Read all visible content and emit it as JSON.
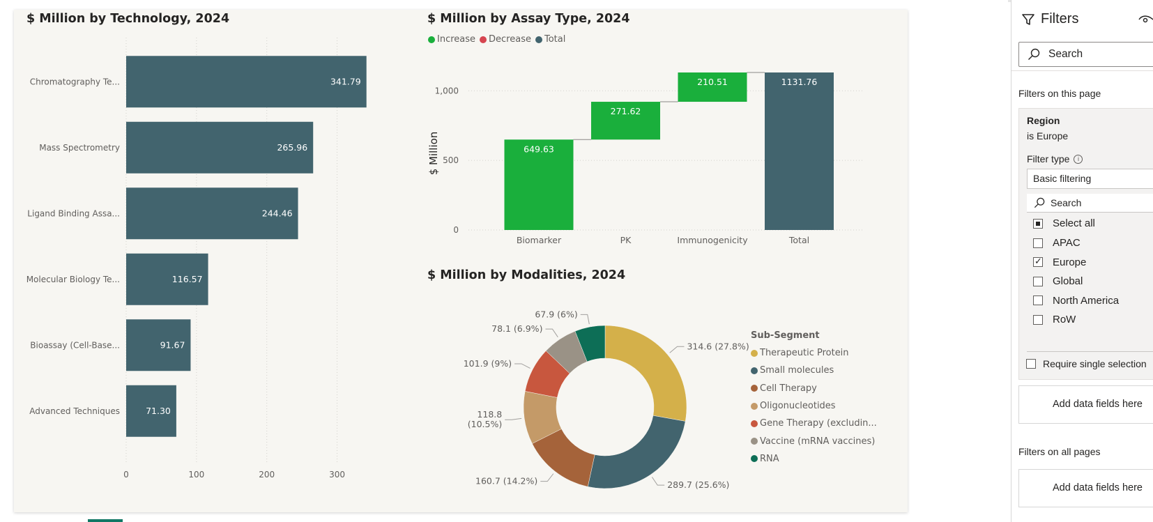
{
  "bar_chart": {
    "title": "$ Million by Technology, 2024",
    "chart_data": {
      "type": "bar",
      "orientation": "horizontal",
      "title": "$ Million by Technology, 2024",
      "categories": [
        "Chromatography Te...",
        "Mass Spectrometry",
        "Ligand Binding Assa...",
        "Molecular Biology Te...",
        "Bioassay (Cell-Base...",
        "Advanced Techniques"
      ],
      "values": [
        341.79,
        265.96,
        244.46,
        116.57,
        91.67,
        71.3
      ],
      "value_labels": [
        "341.79",
        "265.96",
        "244.46",
        "116.57",
        "91.67",
        "71.30"
      ],
      "xlim": [
        0,
        350
      ],
      "x_ticks": [
        0,
        100,
        200,
        300
      ],
      "grid": true,
      "color": "#42646e"
    }
  },
  "waterfall_chart": {
    "title": "$ Million by Assay Type, 2024",
    "legend": [
      {
        "label": "Increase",
        "color": "#1aaf3c"
      },
      {
        "label": "Decrease",
        "color": "#d64550"
      },
      {
        "label": "Total",
        "color": "#42646e"
      }
    ],
    "chart_data": {
      "type": "waterfall",
      "title": "$ Million by Assay Type, 2024",
      "ylabel": "$ Million",
      "categories": [
        "Biomarker",
        "PK",
        "Immunogenicity",
        "Total"
      ],
      "values": [
        649.63,
        271.62,
        210.51,
        1131.76
      ],
      "value_labels": [
        "649.63",
        "271.62",
        "210.51",
        "1131.76"
      ],
      "kinds": [
        "increase",
        "increase",
        "increase",
        "total"
      ],
      "ylim": [
        0,
        1131.76
      ],
      "y_ticks": [
        0,
        500,
        1000
      ],
      "y_tick_labels": [
        "0",
        "500",
        "1,000"
      ],
      "grid": true
    }
  },
  "donut_chart": {
    "title": "$ Million by Modalities, 2024",
    "legend_title": "Sub-Segment",
    "chart_data": {
      "type": "pie",
      "variant": "donut",
      "title": "$ Million by Modalities, 2024",
      "slices": [
        {
          "name": "Therapeutic Protein",
          "value": 314.6,
          "label": "314.6 (27.8%)",
          "color": "#d4b04a"
        },
        {
          "name": "Small molecules",
          "value": 289.7,
          "label": "289.7 (25.6%)",
          "color": "#42646e"
        },
        {
          "name": "Cell Therapy",
          "value": 160.7,
          "label": "160.7 (14.2%)",
          "color": "#a5633a"
        },
        {
          "name": "Oligonucleotides",
          "value": 118.8,
          "label": "118.8 (10.5%)",
          "label_lines": [
            "118.8",
            "(10.5%)"
          ],
          "color": "#c49a68"
        },
        {
          "name": "Gene Therapy (excludin...",
          "value": 101.9,
          "label": "101.9 (9%)",
          "color": "#c8573e"
        },
        {
          "name": "Vaccine (mRNA vaccines)",
          "value": 78.1,
          "label": "78.1 (6.9%)",
          "color": "#9a9286"
        },
        {
          "name": "RNA",
          "value": 67.9,
          "label": "67.9 (6%)",
          "color": "#0d6e56"
        }
      ]
    }
  },
  "filters": {
    "title": "Filters",
    "search_placeholder": "Search",
    "on_this_page": "Filters on this page",
    "card": {
      "field": "Region",
      "condition": "is Europe",
      "filter_type_label": "Filter type",
      "filter_type_value": "Basic filtering",
      "search_placeholder": "Search",
      "select_all": "Select all",
      "options": [
        {
          "label": "APAC",
          "checked": false
        },
        {
          "label": "Europe",
          "checked": true
        },
        {
          "label": "Global",
          "checked": false
        },
        {
          "label": "North America",
          "checked": false
        },
        {
          "label": "RoW",
          "checked": false
        }
      ],
      "require_single": "Require single selection"
    },
    "add_fields_1": "Add data fields here",
    "on_all_pages": "Filters on all pages",
    "add_fields_2": "Add data fields here"
  }
}
